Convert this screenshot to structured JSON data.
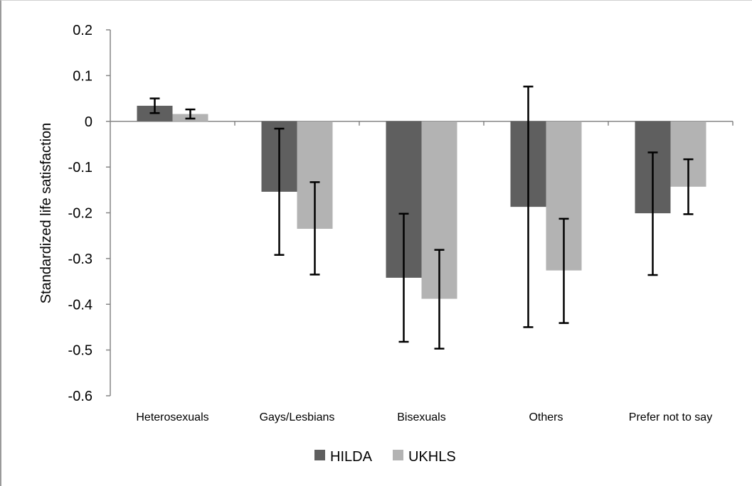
{
  "chart_data": {
    "type": "bar",
    "title": "",
    "xlabel": "",
    "ylabel": "Standardized life satisfaction",
    "ylim": [
      -0.6,
      0.2
    ],
    "yticks": [
      0.2,
      0.1,
      0,
      -0.1,
      -0.2,
      -0.3,
      -0.4,
      -0.5,
      -0.6
    ],
    "ytick_labels": [
      "0.2",
      "0.1",
      "0",
      "-0.1",
      "-0.2",
      "-0.3",
      "-0.4",
      "-0.5",
      "-0.6"
    ],
    "categories": [
      "Heterosexuals",
      "Gays/Lesbians",
      "Bisexuals",
      "Others",
      "Prefer not to say"
    ],
    "series": [
      {
        "name": "HILDA",
        "color": "#5f5f5f",
        "values": [
          0.034,
          -0.154,
          -0.342,
          -0.187,
          -0.201
        ],
        "error_low": [
          0.018,
          -0.292,
          -0.482,
          -0.45,
          -0.336
        ],
        "error_high": [
          0.05,
          -0.016,
          -0.202,
          0.076,
          -0.068
        ]
      },
      {
        "name": "UKHLS",
        "color": "#b3b3b3",
        "values": [
          0.016,
          -0.235,
          -0.388,
          -0.326,
          -0.143
        ],
        "error_low": [
          0.006,
          -0.335,
          -0.497,
          -0.441,
          -0.203
        ],
        "error_high": [
          0.026,
          -0.133,
          -0.281,
          -0.213,
          -0.083
        ]
      }
    ],
    "legend_position": "bottom-center",
    "grid": false
  }
}
